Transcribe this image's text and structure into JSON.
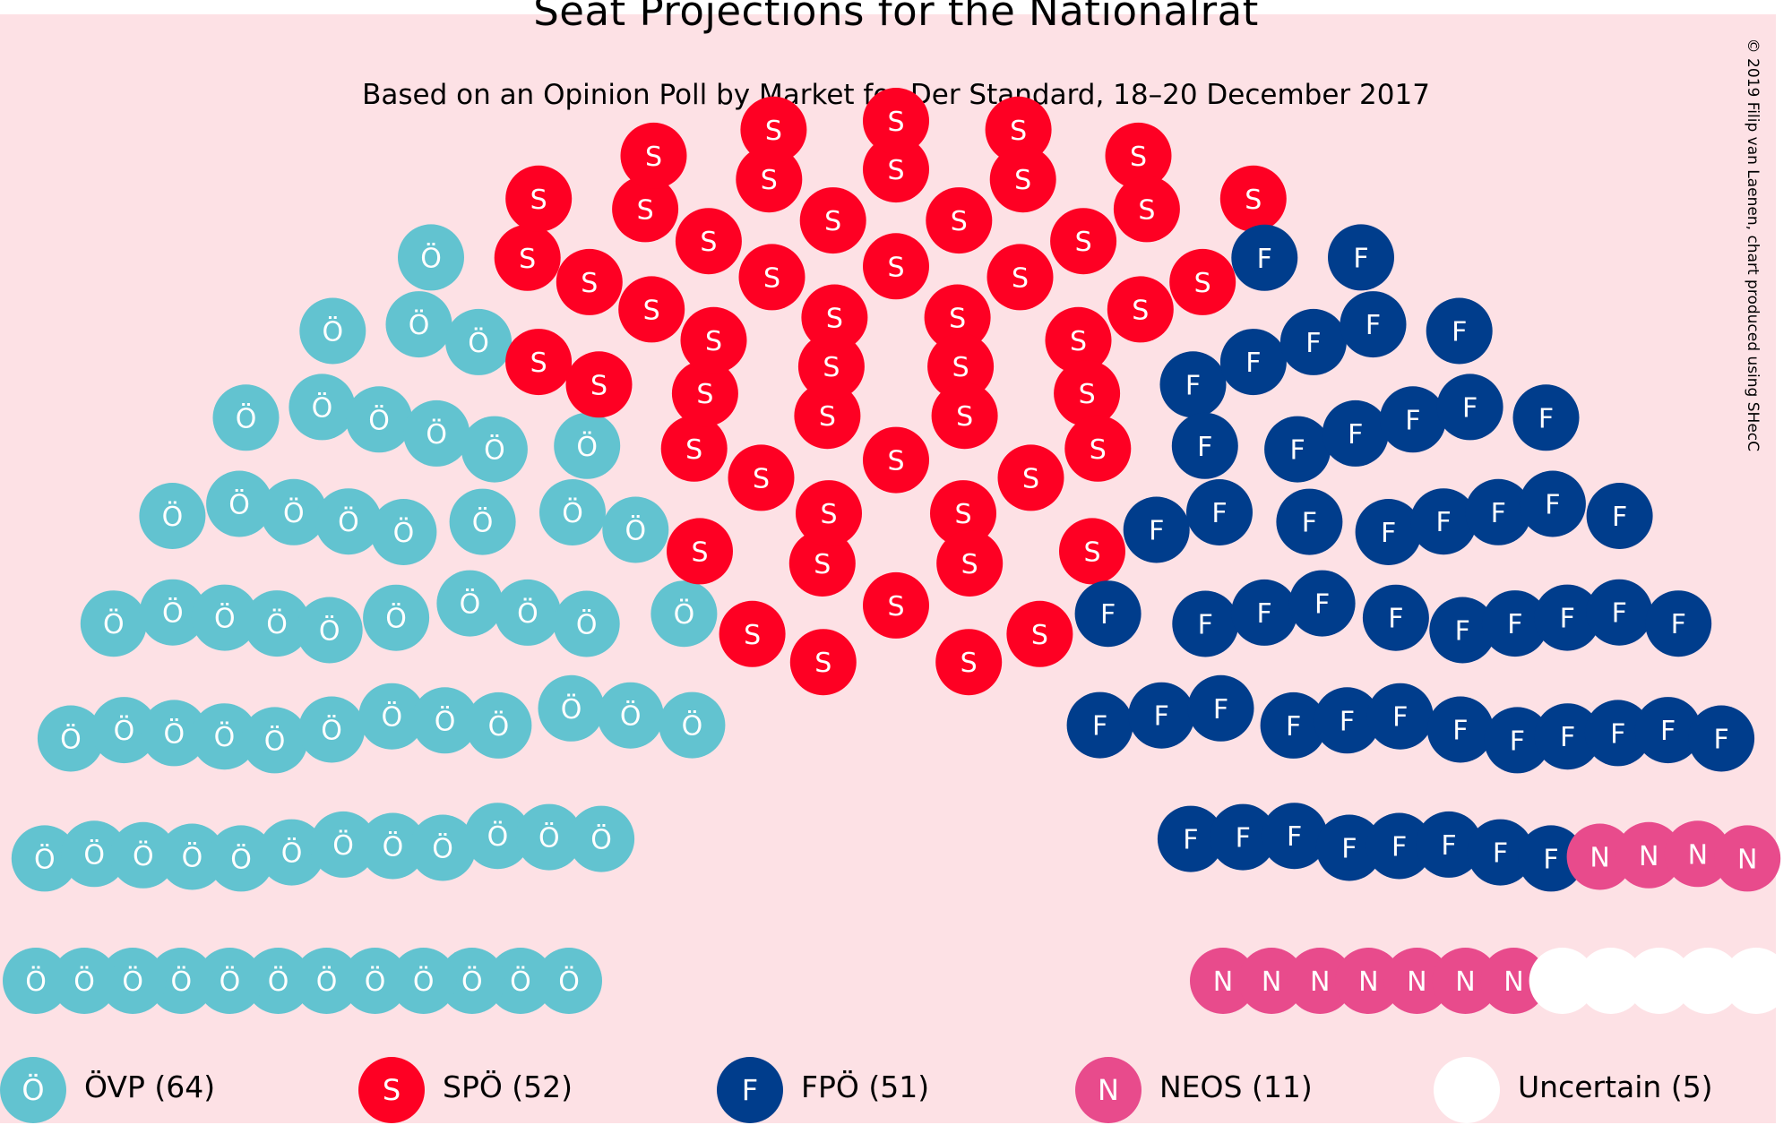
{
  "chart_data": {
    "type": "parliament",
    "title": "Seat Projections for the Nationalrat",
    "subtitle": "Based on an Opinion Poll by Market for Der Standard, 18–20 December 2017",
    "credit": "© 2019 Filip van Laenen, chart produced using SHecC",
    "total_seats": 183,
    "series": [
      {
        "name": "ÖVP",
        "abbrev": "Ö",
        "seats": 64,
        "color": "#62c3d0",
        "legend": "ÖVP (64)"
      },
      {
        "name": "SPÖ",
        "abbrev": "S",
        "seats": 52,
        "color": "#fe0023",
        "legend": "SPÖ (52)"
      },
      {
        "name": "FPÖ",
        "abbrev": "F",
        "seats": 51,
        "color": "#003d8c",
        "legend": "FPÖ (51)"
      },
      {
        "name": "NEOS",
        "abbrev": "N",
        "seats": 11,
        "color": "#e84b8c",
        "legend": "NEOS (11)"
      },
      {
        "name": "Uncertain",
        "abbrev": "",
        "seats": 5,
        "color": "#ffffff",
        "legend": "Uncertain (5)"
      }
    ]
  }
}
